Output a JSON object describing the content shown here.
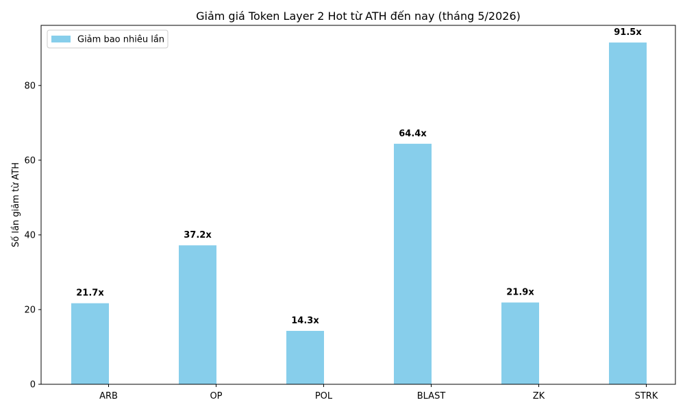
{
  "chart_data": {
    "type": "bar",
    "title": "Giảm giá Token Layer 2 Hot từ ATH đến nay (tháng 5/2026)",
    "xlabel": "",
    "ylabel": "Số lần giảm từ ATH",
    "categories": [
      "ARB",
      "OP",
      "POL",
      "BLAST",
      "ZK",
      "STRK"
    ],
    "series": [
      {
        "name": "Giảm bao nhiêu lần",
        "values": [
          21.7,
          37.2,
          14.3,
          64.4,
          21.9,
          91.5
        ],
        "data_labels": [
          "21.7x",
          "37.2x",
          "14.3x",
          "64.4x",
          "21.9x",
          "91.5x"
        ],
        "color": "#87ceeb"
      }
    ],
    "ylim": [
      0,
      96.1
    ],
    "yticks": [
      0,
      20,
      40,
      60,
      80
    ],
    "grid": false,
    "legend_position": "top-left"
  }
}
